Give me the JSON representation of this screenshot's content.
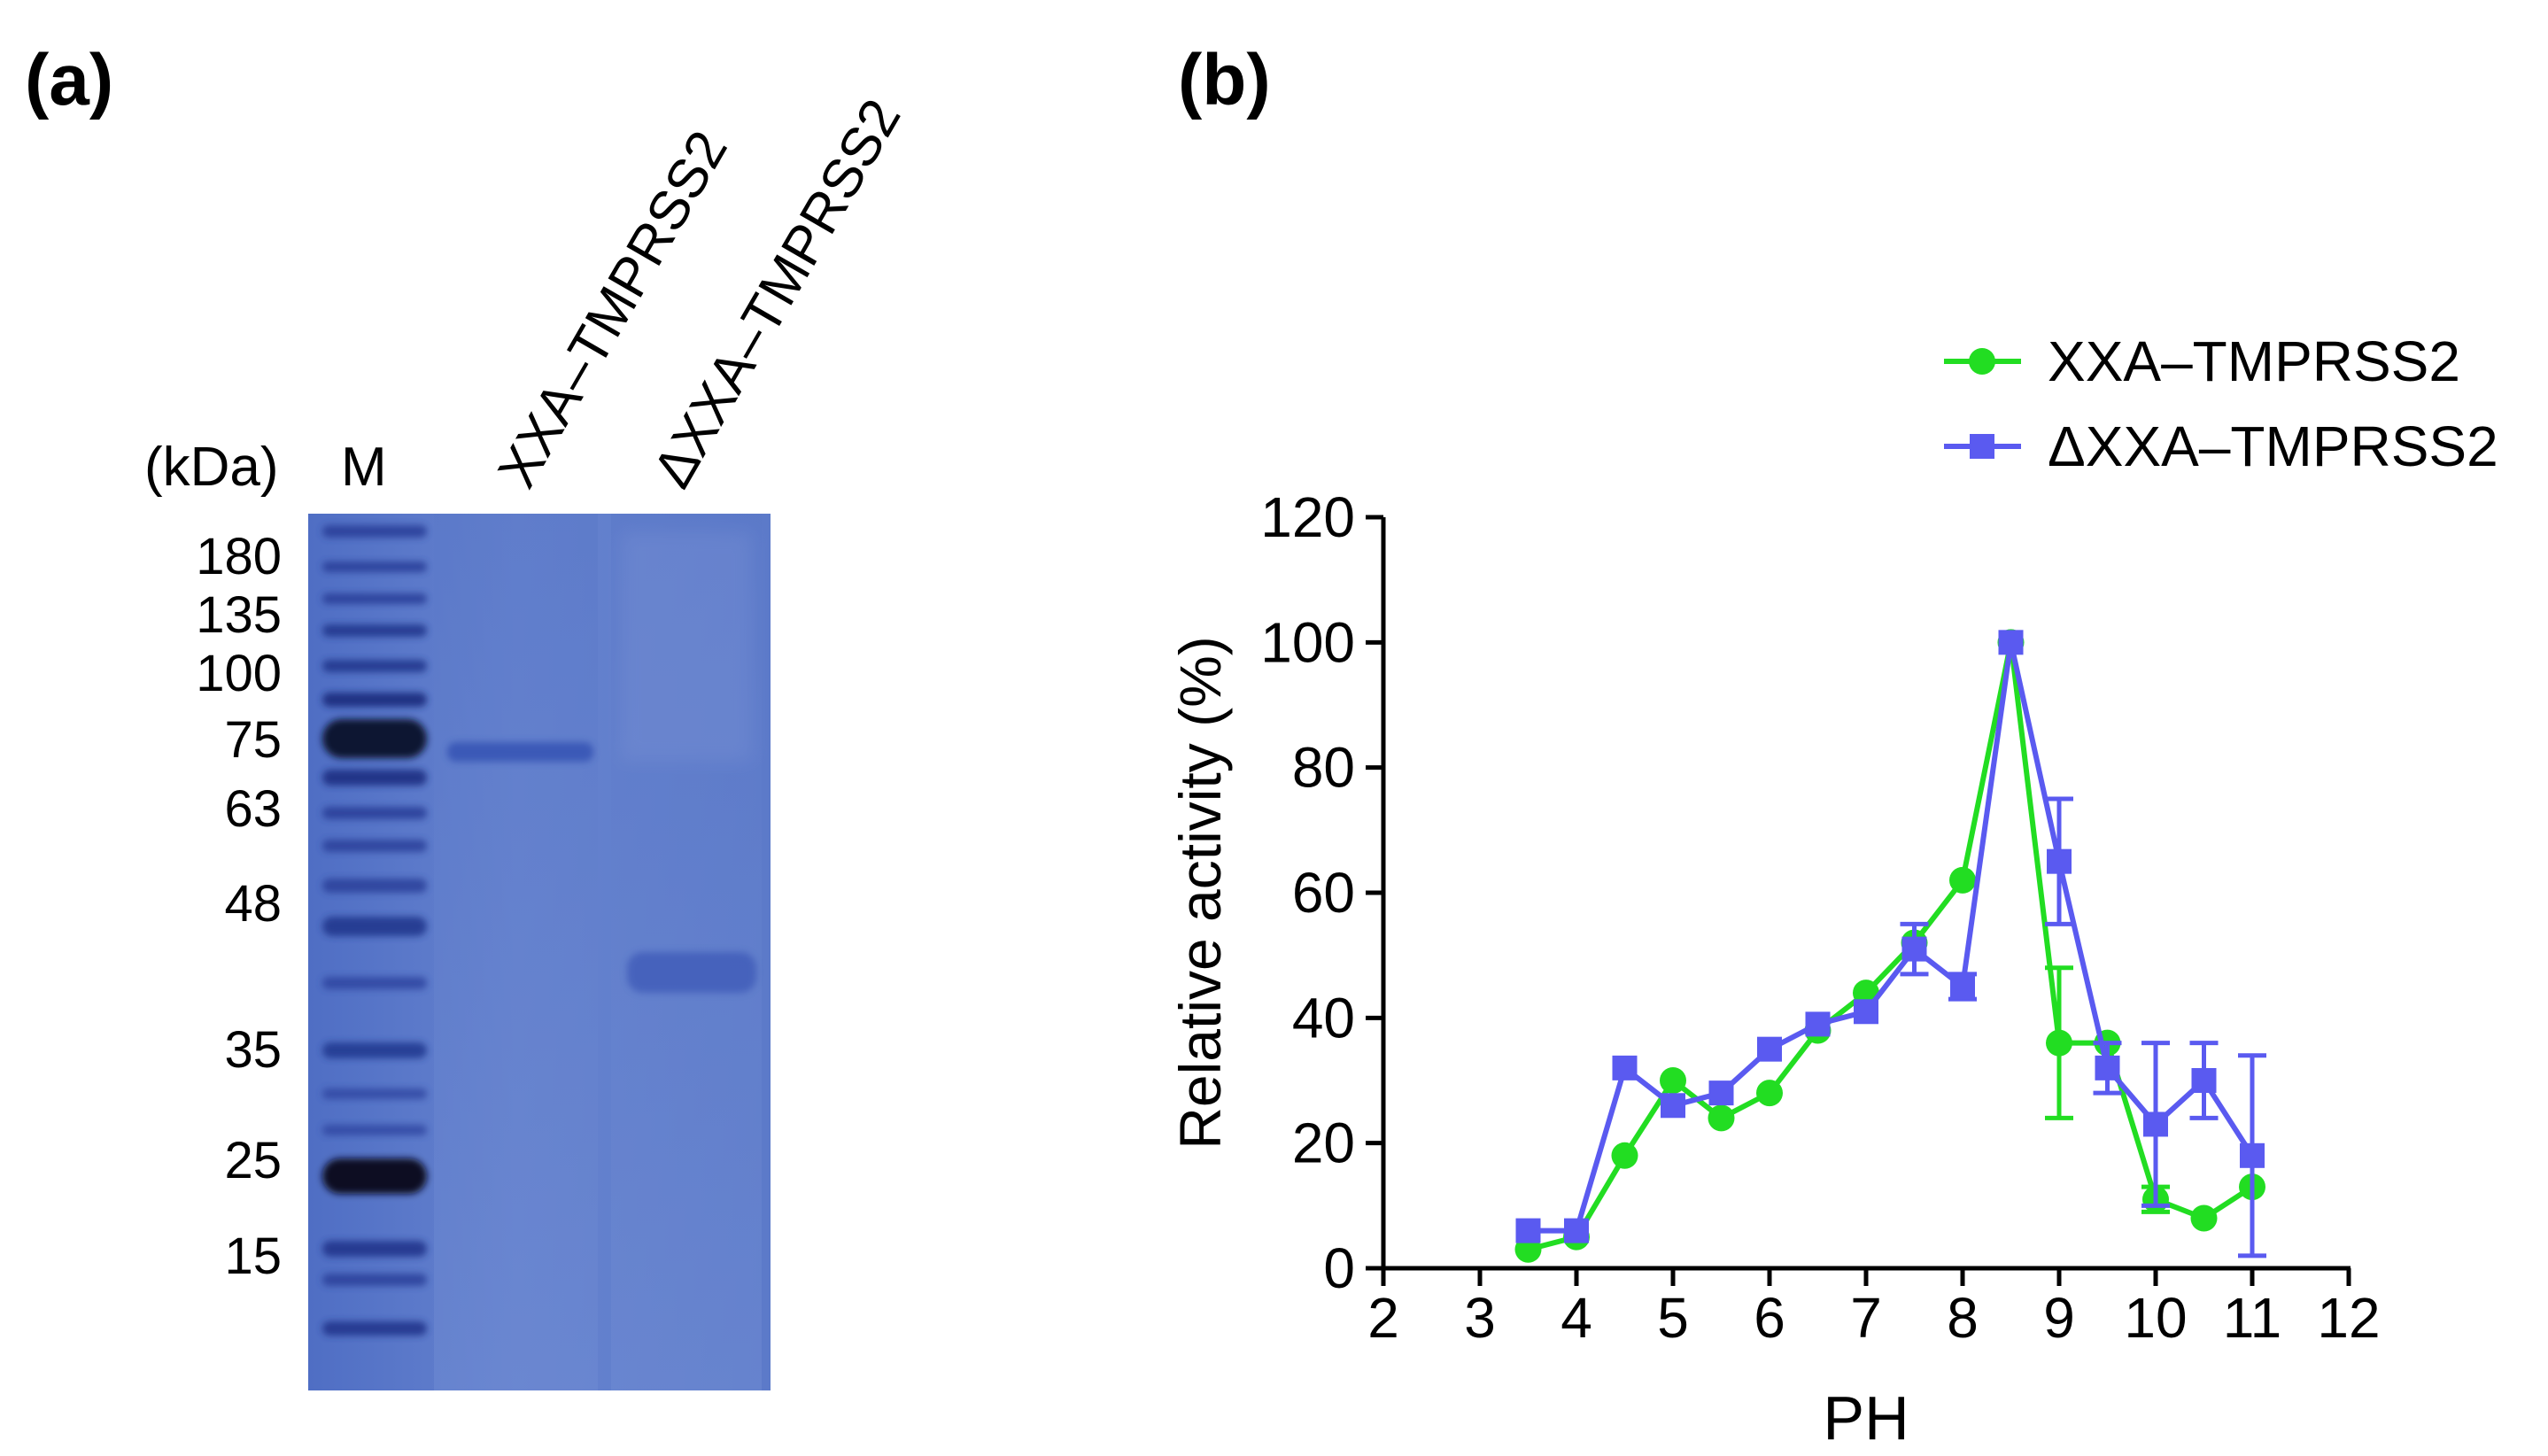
{
  "panel_a": {
    "label": "(a)",
    "unit_label": "(kDa)",
    "marker_lane_label": "M",
    "lane_labels": [
      "XXA–TMPRSS2",
      "ΔXXA–TMPRSS2"
    ],
    "marker_sizes": [
      "180",
      "135",
      "100",
      "75",
      "63",
      "48",
      "35",
      "25",
      "15"
    ],
    "colors": {
      "gel": "#5b78c6",
      "band": "#2f4fae",
      "band_dark": "#0d1430"
    }
  },
  "panel_b": {
    "label": "(b)"
  },
  "chart_data": {
    "type": "line",
    "title": "",
    "xlabel": "PH",
    "ylabel": "Relative activity (%)",
    "xlim": [
      2,
      12
    ],
    "ylim": [
      0,
      120
    ],
    "xticks": [
      "2",
      "3",
      "4",
      "5",
      "6",
      "7",
      "8",
      "9",
      "10",
      "11",
      "12"
    ],
    "yticks": [
      "0",
      "20",
      "40",
      "60",
      "80",
      "100",
      "120"
    ],
    "legend_position": "top-right",
    "series": [
      {
        "name": "XXA–TMPRSS2",
        "color": "#22dd22",
        "marker": "circle",
        "x": [
          3.5,
          4,
          4.5,
          5,
          5.5,
          6,
          6.5,
          7,
          7.5,
          8,
          8.5,
          9,
          9.5,
          10,
          10.5,
          11
        ],
        "y": [
          3,
          5,
          18,
          30,
          24,
          28,
          38,
          44,
          52,
          62,
          100,
          36,
          36,
          11,
          8,
          13
        ],
        "err": [
          0,
          0,
          0,
          0,
          0,
          0,
          0,
          0,
          0,
          0,
          0,
          12,
          0,
          2,
          0,
          0
        ]
      },
      {
        "name": "ΔXXA–TMPRSS2",
        "color": "#5a5af0",
        "marker": "square",
        "x": [
          3.5,
          4,
          4.5,
          5,
          5.5,
          6,
          6.5,
          7,
          7.5,
          8,
          8.5,
          9,
          9.5,
          10,
          10.5,
          11
        ],
        "y": [
          6,
          6,
          32,
          26,
          28,
          35,
          39,
          41,
          51,
          45,
          100,
          65,
          32,
          23,
          30,
          18
        ],
        "err": [
          0,
          0,
          0,
          0,
          0,
          0,
          0,
          0,
          4,
          2,
          0,
          10,
          4,
          13,
          6,
          16
        ]
      }
    ]
  }
}
